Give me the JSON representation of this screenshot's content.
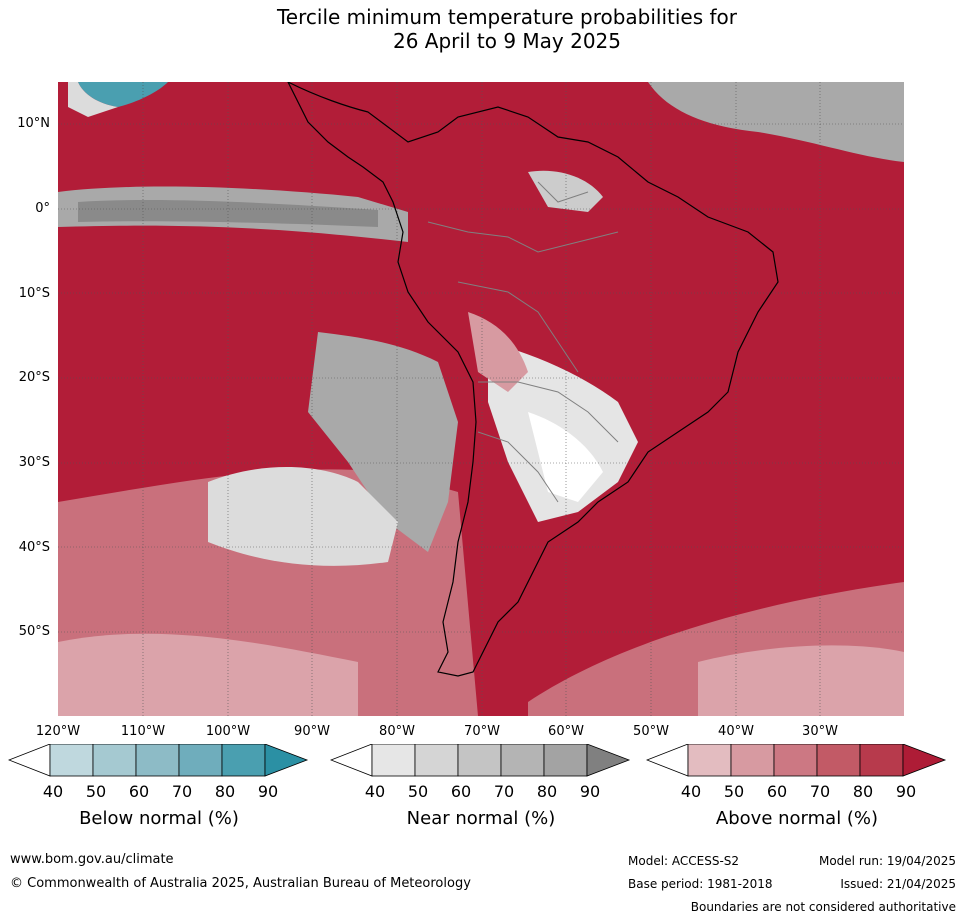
{
  "title_line1": "Tercile minimum temperature probabilities for",
  "title_line2": "26 April to 9 May 2025",
  "lat_labels": [
    "10°N",
    "0°",
    "10°S",
    "20°S",
    "30°S",
    "40°S",
    "50°S"
  ],
  "lon_labels": [
    "120°W",
    "110°W",
    "100°W",
    "90°W",
    "80°W",
    "70°W",
    "60°W",
    "50°W",
    "40°W",
    "30°W"
  ],
  "colorbars": [
    {
      "title": "Below normal (%)",
      "ticks": [
        "40",
        "50",
        "60",
        "70",
        "80",
        "90"
      ],
      "colors": [
        "#ffffff",
        "#bfd8de",
        "#a5c9d1",
        "#8dbbc6",
        "#6fadbc",
        "#4a9fb0",
        "#2b90a4"
      ]
    },
    {
      "title": "Near normal (%)",
      "ticks": [
        "40",
        "50",
        "60",
        "70",
        "80",
        "90"
      ],
      "colors": [
        "#ffffff",
        "#e6e6e6",
        "#d5d5d5",
        "#c4c4c4",
        "#b4b4b4",
        "#a3a3a3",
        "#808080"
      ]
    },
    {
      "title": "Above normal (%)",
      "ticks": [
        "40",
        "50",
        "60",
        "70",
        "80",
        "90"
      ],
      "colors": [
        "#ffffff",
        "#e3bcc0",
        "#d79aa1",
        "#cc7883",
        "#c25a66",
        "#b73a4c",
        "#ae1c36"
      ]
    }
  ],
  "colors": {
    "above_dominant": "#b21d38",
    "ocean_near": "#a5a5a5",
    "land_line": "#000000",
    "border_line": "#808080"
  },
  "footer": {
    "website": "www.bom.gov.au/climate",
    "copyright": "© Commonwealth of Australia 2025, Australian Bureau of Meteorology",
    "model": "Model: ACCESS-S2",
    "base_period": "Base period: 1981-2018",
    "model_run": "Model run: 19/04/2025",
    "issued": "Issued: 21/04/2025",
    "disclaimer": "Boundaries are not considered authoritative"
  }
}
